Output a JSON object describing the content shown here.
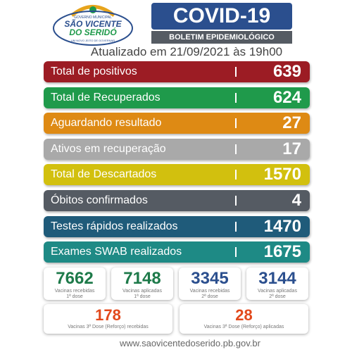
{
  "logo": {
    "line1": "GOVERNO MUNICIPAL",
    "line2": "SÃO VICENTE",
    "line3": "DO SERIDÓ",
    "line4": "UM NOVO JEITO DE GOVERNAR"
  },
  "header": {
    "title": "COVID-19",
    "subtitle": "BOLETIM EPIDEMIOLÓGICO",
    "updated": "Atualizado em 21/09/2021 às 19h00"
  },
  "rows": [
    {
      "label": "Total de positivos",
      "value": 639,
      "color": "#9c1c24"
    },
    {
      "label": "Total de Recuperados",
      "value": 624,
      "color": "#1f9a4b"
    },
    {
      "label": "Aguardando resultado",
      "value": 27,
      "color": "#de8a14"
    },
    {
      "label": "Ativos em recuperação",
      "value": 17,
      "color": "#a9a9a9"
    },
    {
      "label": "Total de Descartados",
      "value": 1570,
      "color": "#d2c00e"
    },
    {
      "label": "Óbitos confirmados",
      "value": 4,
      "color": "#555b63"
    },
    {
      "label": "Testes rápidos realizados",
      "value": 1470,
      "color": "#1f5b7a"
    },
    {
      "label": "Exames SWAB realizados",
      "value": 1675,
      "color": "#1e8a85"
    }
  ],
  "vaccines": [
    {
      "value": 7662,
      "label": "Vacinas recebidas",
      "dose": "1ª dose",
      "color": "#1e7a4a"
    },
    {
      "value": 7148,
      "label": "Vacinas aplicadas",
      "dose": "1ª dose",
      "color": "#1e7a4a"
    },
    {
      "value": 3345,
      "label": "Vacinas recebidas",
      "dose": "2ª dose",
      "color": "#2b4f8e"
    },
    {
      "value": 3144,
      "label": "Vacinas aplicadas",
      "dose": "2ª dose",
      "color": "#2b4f8e"
    }
  ],
  "boosters": [
    {
      "value": 178,
      "label": "Vacinas 3ª Dose (Reforço) recebidas",
      "color": "#e2491c"
    },
    {
      "value": 28,
      "label": "Vacinas 3ª Dose (Reforço) aplicadas",
      "color": "#e2491c"
    }
  ],
  "footer": {
    "url": "www.saovicentedoserido.pb.gov.br"
  }
}
